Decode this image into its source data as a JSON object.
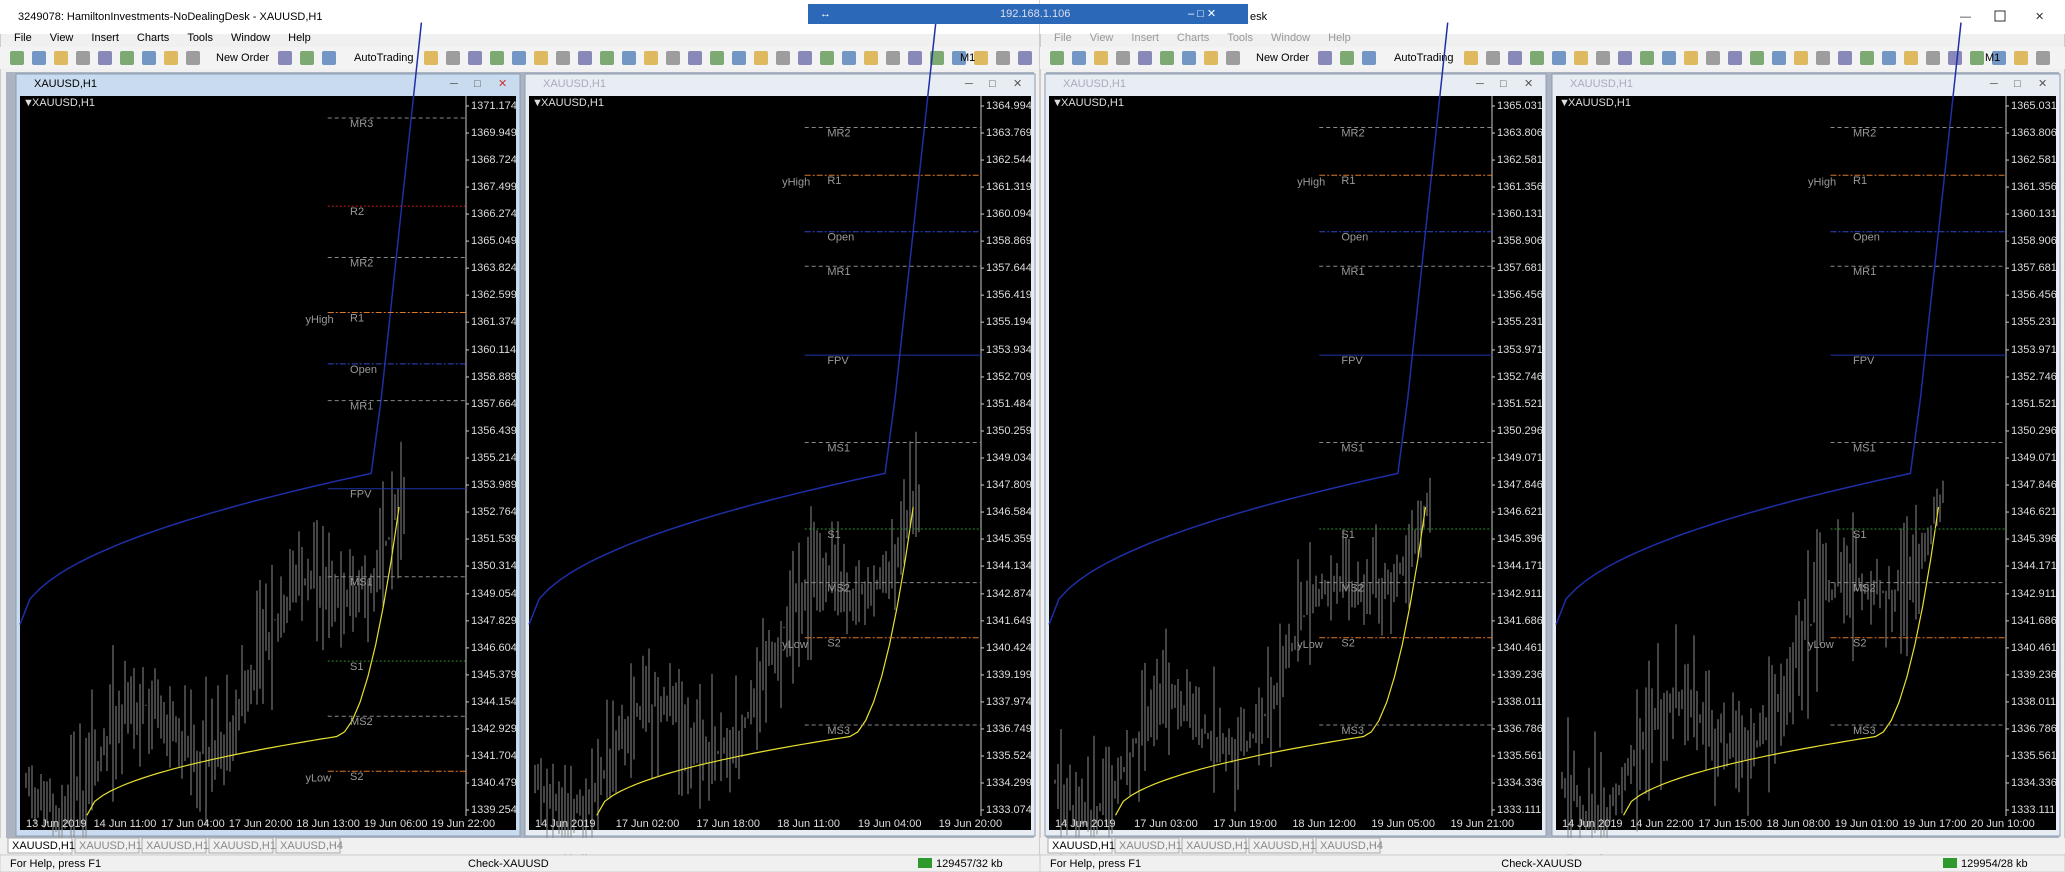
{
  "remote_bar": {
    "address": "192.168.1.106"
  },
  "windows": [
    {
      "title": "3249078: HamiltonInvestments-NoDealingDesk - XAUUSD,H1",
      "menu": [
        "File",
        "View",
        "Insert",
        "Charts",
        "Tools",
        "Window",
        "Help"
      ],
      "toolbar": [
        "New Order",
        "AutoTrading",
        "M1"
      ],
      "charts": [
        {
          "title": "XAUUSD,H1",
          "symbol": "XAUUSD,H1",
          "prices": [
            1371.174,
            1369.949,
            1368.724,
            1367.499,
            1366.274,
            1365.049,
            1363.824,
            1362.599,
            1361.374,
            1360.114,
            1358.889,
            1357.664,
            1356.439,
            1355.214,
            1353.989,
            1352.764,
            1351.539,
            1350.314,
            1349.054,
            1347.829,
            1346.604,
            1345.379,
            1344.154,
            1342.929,
            1341.704,
            1340.479,
            1339.254
          ],
          "times": [
            "13 Jun 2019",
            "14 Jun 11:00",
            "17 Jun 04:00",
            "17 Jun 20:00",
            "18 Jun 13:00",
            "19 Jun 06:00",
            "19 Jun 22:00"
          ],
          "levels": [
            "MR3",
            "R2",
            "MR2",
            "R1",
            "yHigh",
            "Open",
            "MR1",
            "FPV",
            "MS1",
            "S1",
            "MS2",
            "yLow",
            "S2"
          ]
        },
        {
          "title": "XAUUSD,H1",
          "symbol": "XAUUSD,H1",
          "prices": [
            1364.994,
            1363.769,
            1362.544,
            1361.319,
            1360.094,
            1358.869,
            1357.644,
            1356.419,
            1355.194,
            1353.934,
            1352.709,
            1351.484,
            1350.259,
            1349.034,
            1347.809,
            1346.584,
            1345.359,
            1344.134,
            1342.874,
            1341.649,
            1340.424,
            1339.199,
            1337.974,
            1336.749,
            1335.524,
            1334.299,
            1333.074
          ],
          "times": [
            "14 Jun 2019",
            "17 Jun 02:00",
            "17 Jun 18:00",
            "18 Jun 11:00",
            "19 Jun 04:00",
            "19 Jun 20:00"
          ],
          "levels": [
            "MR2",
            "yHigh",
            "R1",
            "Open",
            "MR1",
            "FPV",
            "MS1",
            "S1",
            "MS2",
            "yLow",
            "S2",
            "MS3"
          ]
        }
      ],
      "tabs": [
        "XAUUSD,H1",
        "XAUUSD,H1",
        "XAUUSD,H1",
        "XAUUSD,H1",
        "XAUUSD,H4"
      ],
      "status": {
        "help": "For Help, press F1",
        "profile": "Check-XAUUSD",
        "traffic": "129457/32 kb"
      }
    },
    {
      "title": "esk",
      "menu": [
        "File",
        "View",
        "Insert",
        "Charts",
        "Tools",
        "Window",
        "Help"
      ],
      "toolbar": [
        "New Order",
        "AutoTrading",
        "M1"
      ],
      "charts": [
        {
          "title": "XAUUSD,H1",
          "symbol": "XAUUSD,H1",
          "prices": [
            1365.031,
            1363.806,
            1362.581,
            1361.356,
            1360.131,
            1358.906,
            1357.681,
            1356.456,
            1355.231,
            1353.971,
            1352.746,
            1351.521,
            1350.296,
            1349.071,
            1347.846,
            1346.621,
            1345.396,
            1344.171,
            1342.911,
            1341.686,
            1340.461,
            1339.236,
            1338.011,
            1336.786,
            1335.561,
            1334.336,
            1333.111
          ],
          "times": [
            "14 Jun 2019",
            "17 Jun 03:00",
            "17 Jun 19:00",
            "18 Jun 12:00",
            "19 Jun 05:00",
            "19 Jun 21:00"
          ],
          "levels": [
            "MR2",
            "yHigh",
            "R1",
            "Open",
            "MR1",
            "FPV",
            "MS1",
            "S1",
            "MS2",
            "yLow",
            "S2",
            "MS3"
          ]
        },
        {
          "title": "XAUUSD,H1",
          "symbol": "XAUUSD,H1",
          "prices": [
            1365.031,
            1363.806,
            1362.581,
            1361.356,
            1360.131,
            1358.906,
            1357.681,
            1356.456,
            1355.231,
            1353.971,
            1352.746,
            1351.521,
            1350.296,
            1349.071,
            1347.846,
            1346.621,
            1345.396,
            1344.171,
            1342.911,
            1341.686,
            1340.461,
            1339.236,
            1338.011,
            1336.786,
            1335.561,
            1334.336,
            1333.111
          ],
          "times": [
            "14 Jun 2019",
            "14 Jun 22:00",
            "17 Jun 15:00",
            "18 Jun 08:00",
            "19 Jun 01:00",
            "19 Jun 17:00",
            "20 Jun 10:00"
          ],
          "levels": [
            "MR2",
            "yHigh",
            "R1",
            "Open",
            "MR1",
            "FPV",
            "MS1",
            "S1",
            "MS2",
            "yLow",
            "S2",
            "MS3"
          ]
        }
      ],
      "tabs": [
        "XAUUSD,H1",
        "XAUUSD,H1",
        "XAUUSD,H1",
        "XAUUSD,H1",
        "XAUUSD,H4"
      ],
      "status": {
        "help": "For Help, press F1",
        "profile": "Check-XAUUSD",
        "traffic": "129954/28 kb"
      }
    }
  ]
}
